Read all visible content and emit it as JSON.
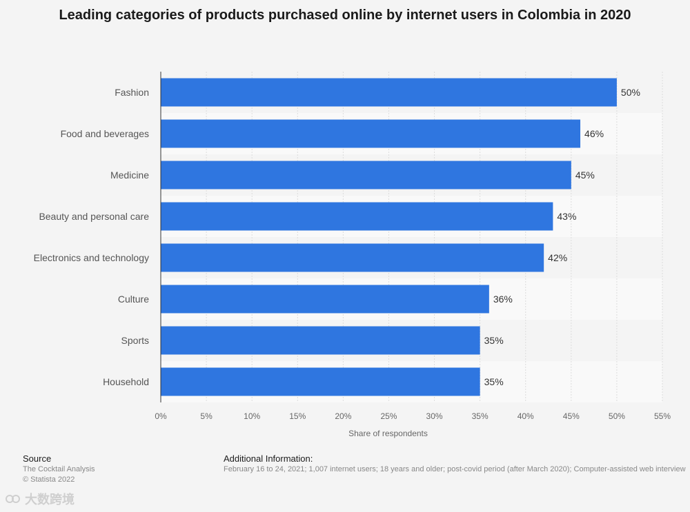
{
  "chart_data": {
    "type": "bar",
    "orientation": "horizontal",
    "title": "Leading categories of products purchased online by internet users in Colombia in 2020",
    "categories": [
      "Fashion",
      "Food and beverages",
      "Medicine",
      "Beauty and personal care",
      "Electronics and technology",
      "Culture",
      "Sports",
      "Household"
    ],
    "values": [
      50,
      46,
      45,
      43,
      42,
      36,
      35,
      35
    ],
    "value_labels": [
      "50%",
      "46%",
      "45%",
      "43%",
      "42%",
      "36%",
      "35%",
      "35%"
    ],
    "xlabel": "Share of respondents",
    "ylabel": "",
    "xlim": [
      0,
      55
    ],
    "x_ticks": [
      0,
      5,
      10,
      15,
      20,
      25,
      30,
      35,
      40,
      45,
      50,
      55
    ],
    "x_tick_labels": [
      "0%",
      "5%",
      "10%",
      "15%",
      "20%",
      "25%",
      "30%",
      "35%",
      "40%",
      "45%",
      "50%",
      "55%"
    ],
    "grid": true,
    "bar_color": "#2f76e0"
  },
  "footer": {
    "source_heading": "Source",
    "source_lines": [
      "The Cocktail Analysis",
      "© Statista 2022"
    ],
    "info_heading": "Additional Information:",
    "info_line": "February 16 to 24, 2021; 1,007 internet users; 18 years and older; post-covid period (after March 2020); Computer-assisted web interview"
  },
  "watermark": {
    "text": "大数跨境",
    "icon": "watermark-logo-icon"
  }
}
